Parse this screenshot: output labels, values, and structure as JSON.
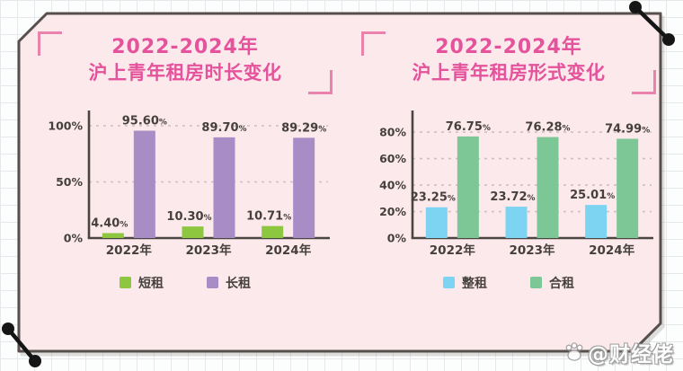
{
  "colors": {
    "card_fill": "#fce9ec",
    "card_border": "#564f4b",
    "title_pink": "#e4539b",
    "bracket_pink": "#ea82ae",
    "label_dark": "#45403c",
    "axis": "#4a4541",
    "grid_dash": "#ccc0c1",
    "pin_black": "#151515",
    "short_rent_green": "#8dc63f",
    "long_rent_purple": "#a78cc6",
    "whole_rent_blue": "#7cd3f2",
    "shared_rent_green": "#7cc795"
  },
  "watermark": {
    "icon": "baidu-paw-icon",
    "handle": "@财经佬"
  },
  "chart_data": [
    {
      "type": "bar",
      "title_line1": "2022-2024年",
      "title_line2": "沪上青年租房时长变化",
      "title": "2022-2024年沪上青年租房时长变化",
      "categories": [
        "2022年",
        "2023年",
        "2024年"
      ],
      "series": [
        {
          "name": "短租",
          "color": "#8dc63f",
          "values": [
            4.4,
            10.3,
            10.71
          ]
        },
        {
          "name": "长租",
          "color": "#a78cc6",
          "values": [
            95.6,
            89.7,
            89.29
          ]
        }
      ],
      "unit": "%",
      "yticks": [
        0,
        50,
        100
      ],
      "ylim": [
        0,
        112
      ],
      "grid": true,
      "legend_position": "bottom"
    },
    {
      "type": "bar",
      "title_line1": "2022-2024年",
      "title_line2": "沪上青年租房形式变化",
      "title": "2022-2024年沪上青年租房形式变化",
      "categories": [
        "2022年",
        "2023年",
        "2024年"
      ],
      "series": [
        {
          "name": "整租",
          "color": "#7cd3f2",
          "values": [
            23.25,
            23.72,
            25.01
          ]
        },
        {
          "name": "合租",
          "color": "#7cc795",
          "values": [
            76.75,
            76.28,
            74.99
          ]
        }
      ],
      "unit": "%",
      "yticks": [
        0,
        20,
        40,
        60,
        80
      ],
      "ylim": [
        0,
        95
      ],
      "grid": true,
      "legend_position": "bottom"
    }
  ]
}
